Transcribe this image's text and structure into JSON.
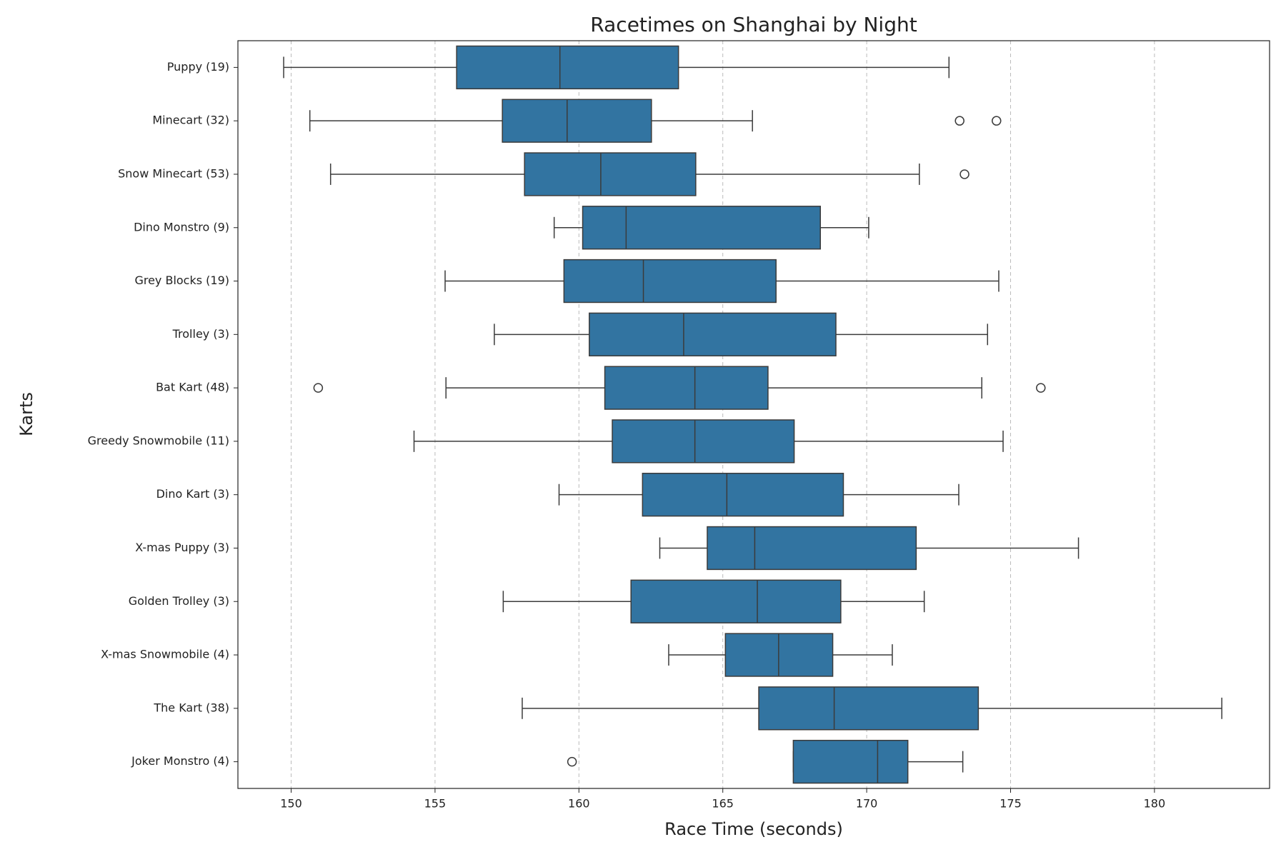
{
  "chart_data": {
    "type": "boxplot",
    "title": "Racetimes on Shanghai by Night",
    "x_label": "Race Time (seconds)",
    "y_label": "Karts",
    "color": "#3274a1",
    "grid": true,
    "xlim": [
      148.15,
      184.0
    ],
    "xticks": [
      150,
      155,
      160,
      165,
      170,
      175,
      180
    ],
    "categories": [
      "Puppy (19)",
      "Minecart (32)",
      "Snow Minecart (53)",
      "Dino Monstro (9)",
      "Grey Blocks (19)",
      "Trolley (3)",
      "Bat Kart (48)",
      "Greedy Snowmobile (11)",
      "Dino Kart (3)",
      "X-mas Puppy (3)",
      "Golden Trolley (3)",
      "X-mas Snowmobile (4)",
      "The Kart (38)",
      "Joker Monstro (4)"
    ],
    "boxes": [
      {
        "whislo": 149.74,
        "q1": 155.75,
        "med": 159.34,
        "q3": 163.46,
        "whishi": 172.86,
        "fliers": []
      },
      {
        "whislo": 150.65,
        "q1": 157.34,
        "med": 159.59,
        "q3": 162.52,
        "whishi": 166.03,
        "fliers": [
          173.23,
          174.51
        ]
      },
      {
        "whislo": 151.37,
        "q1": 158.11,
        "med": 160.76,
        "q3": 164.06,
        "whishi": 171.83,
        "fliers": [
          173.4
        ]
      },
      {
        "whislo": 159.14,
        "q1": 160.13,
        "med": 161.64,
        "q3": 168.39,
        "whishi": 170.07,
        "fliers": []
      },
      {
        "whislo": 155.35,
        "q1": 159.48,
        "med": 162.24,
        "q3": 166.85,
        "whishi": 174.59,
        "fliers": []
      },
      {
        "whislo": 157.06,
        "q1": 160.36,
        "med": 163.64,
        "q3": 168.93,
        "whishi": 174.2,
        "fliers": []
      },
      {
        "whislo": 155.38,
        "q1": 160.9,
        "med": 164.03,
        "q3": 166.57,
        "whishi": 174.0,
        "fliers": [
          150.94,
          176.05
        ]
      },
      {
        "whislo": 154.27,
        "q1": 161.16,
        "med": 164.03,
        "q3": 167.48,
        "whishi": 174.74,
        "fliers": []
      },
      {
        "whislo": 159.31,
        "q1": 162.21,
        "med": 165.14,
        "q3": 169.19,
        "whishi": 173.2,
        "fliers": []
      },
      {
        "whislo": 162.81,
        "q1": 164.46,
        "med": 166.11,
        "q3": 171.72,
        "whishi": 177.36,
        "fliers": []
      },
      {
        "whislo": 157.37,
        "q1": 161.81,
        "med": 166.2,
        "q3": 169.1,
        "whishi": 172.0,
        "fliers": []
      },
      {
        "whislo": 163.12,
        "q1": 165.09,
        "med": 166.94,
        "q3": 168.82,
        "whishi": 170.89,
        "fliers": []
      },
      {
        "whislo": 158.03,
        "q1": 166.25,
        "med": 168.87,
        "q3": 173.88,
        "whishi": 182.34,
        "fliers": []
      },
      {
        "whislo": 167.45,
        "q1": 167.45,
        "med": 170.38,
        "q3": 171.43,
        "whishi": 173.34,
        "fliers": [
          159.76
        ]
      }
    ]
  }
}
